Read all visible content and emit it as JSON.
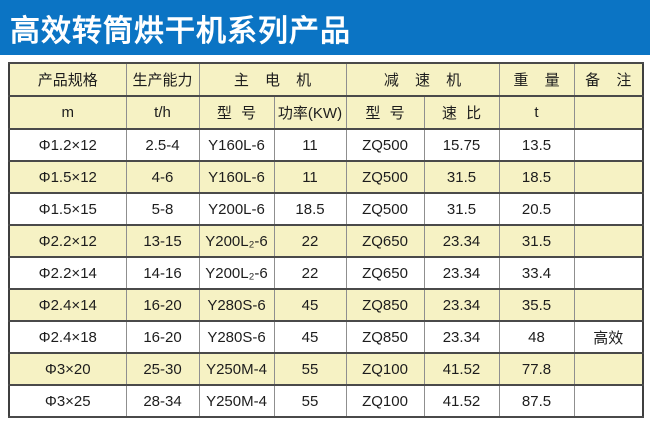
{
  "banner": {
    "title": "高效转筒烘干机系列产品"
  },
  "colors": {
    "banner_bg": "#0b74c4",
    "banner_fg": "#ffffff",
    "header_bg": "#f6f2c4",
    "row_alt_bg": "#f6f2c4",
    "row_bg": "#ffffff",
    "border_dark": "#4a4a4a",
    "border_light": "#8f8f8f",
    "text": "#1d1d1d"
  },
  "table": {
    "group_headers": [
      {
        "label": "产品规格"
      },
      {
        "label": "生产能力"
      },
      {
        "label": "主 电 机"
      },
      {
        "label": "减 速 机"
      },
      {
        "label": "重 量"
      },
      {
        "label": "备 注"
      }
    ],
    "sub_headers": [
      "m",
      "t/h",
      "型 号",
      "功率(KW)",
      "型 号",
      "速 比",
      "t",
      ""
    ],
    "rows": [
      [
        "Φ1.2×12",
        "2.5-4",
        "Y160L-6",
        "11",
        "ZQ500",
        "15.75",
        "13.5",
        ""
      ],
      [
        "Φ1.5×12",
        "4-6",
        "Y160L-6",
        "11",
        "ZQ500",
        "31.5",
        "18.5",
        ""
      ],
      [
        "Φ1.5×15",
        "5-8",
        "Y200L-6",
        "18.5",
        "ZQ500",
        "31.5",
        "20.5",
        ""
      ],
      [
        "Φ2.2×12",
        "13-15",
        "Y200L₂-6",
        "22",
        "ZQ650",
        "23.34",
        "31.5",
        ""
      ],
      [
        "Φ2.2×14",
        "14-16",
        "Y200L₂-6",
        "22",
        "ZQ650",
        "23.34",
        "33.4",
        ""
      ],
      [
        "Φ2.4×14",
        "16-20",
        "Y280S-6",
        "45",
        "ZQ850",
        "23.34",
        "35.5",
        ""
      ],
      [
        "Φ2.4×18",
        "16-20",
        "Y280S-6",
        "45",
        "ZQ850",
        "23.34",
        "48",
        "高效"
      ],
      [
        "Φ3×20",
        "25-30",
        "Y250M-4",
        "55",
        "ZQ100",
        "41.52",
        "77.8",
        ""
      ],
      [
        "Φ3×25",
        "28-34",
        "Y250M-4",
        "55",
        "ZQ100",
        "41.52",
        "87.5",
        ""
      ]
    ]
  }
}
